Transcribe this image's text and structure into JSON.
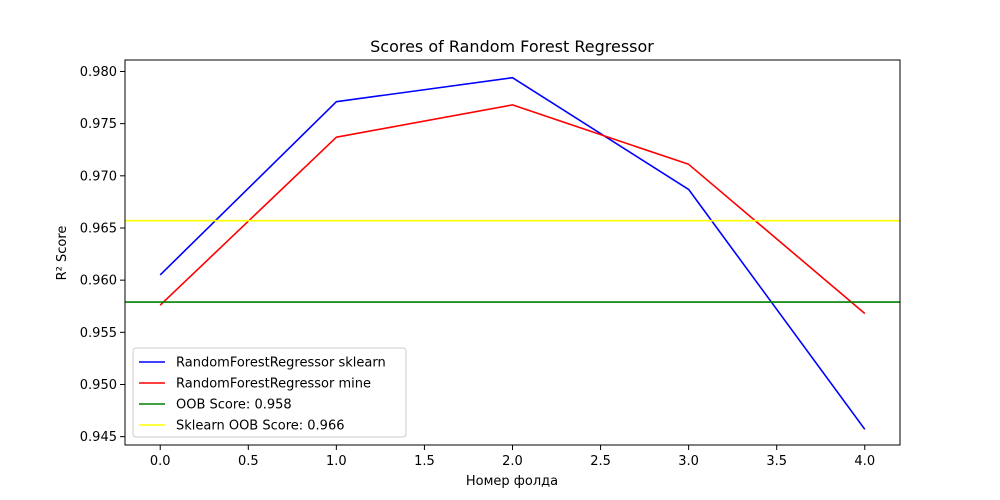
{
  "chart_data": {
    "type": "line",
    "title": "Scores of Random Forest Regressor",
    "xlabel": "Номер фолда",
    "ylabel": "R² Score",
    "xlim": [
      -0.2,
      4.2
    ],
    "ylim": [
      0.9442,
      0.9811
    ],
    "x_ticks": [
      0.0,
      0.5,
      1.0,
      1.5,
      2.0,
      2.5,
      3.0,
      3.5,
      4.0
    ],
    "x_tick_labels": [
      "0.0",
      "0.5",
      "1.0",
      "1.5",
      "2.0",
      "2.5",
      "3.0",
      "3.5",
      "4.0"
    ],
    "y_ticks": [
      0.945,
      0.95,
      0.955,
      0.96,
      0.965,
      0.97,
      0.975,
      0.98
    ],
    "y_tick_labels": [
      "0.945",
      "0.950",
      "0.955",
      "0.960",
      "0.965",
      "0.970",
      "0.975",
      "0.980"
    ],
    "grid": false,
    "legend_position": "lower-left",
    "series": [
      {
        "name": "RandomForestRegressor sklearn",
        "kind": "line",
        "color": "#0000ff",
        "x": [
          0,
          1,
          2,
          3,
          4
        ],
        "values": [
          0.9605,
          0.9771,
          0.9794,
          0.9687,
          0.9457
        ]
      },
      {
        "name": "RandomForestRegressor mine",
        "kind": "line",
        "color": "#ff0000",
        "x": [
          0,
          1,
          2,
          3,
          4
        ],
        "values": [
          0.9576,
          0.9737,
          0.9768,
          0.9711,
          0.9568
        ]
      },
      {
        "name": "OOB Score: 0.958",
        "kind": "hline",
        "color": "#008000",
        "value": 0.9579
      },
      {
        "name": "Sklearn OOB Score: 0.966",
        "kind": "hline",
        "color": "#ffff00",
        "value": 0.9657
      }
    ]
  }
}
